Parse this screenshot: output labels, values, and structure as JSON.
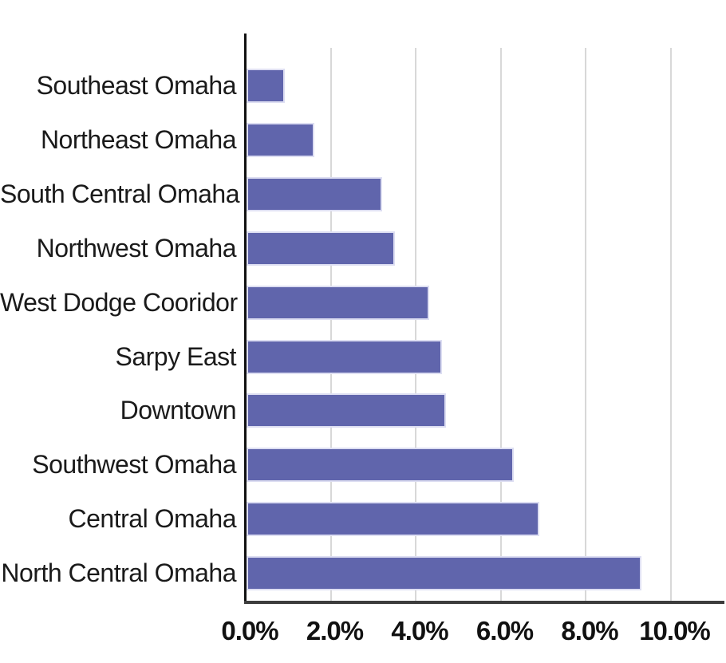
{
  "chart_data": {
    "type": "bar",
    "orientation": "horizontal",
    "title": "",
    "xlabel": "",
    "ylabel": "",
    "categories": [
      "Southeast Omaha",
      "Northeast Omaha",
      "South Central Omaha",
      "Northwest Omaha",
      "West Dodge Cooridor",
      "Sarpy East",
      "Downtown",
      "Southwest Omaha",
      "Central Omaha",
      "North Central Omaha"
    ],
    "values": [
      0.9,
      1.6,
      3.2,
      3.5,
      4.3,
      4.6,
      4.7,
      6.3,
      6.9,
      9.3
    ],
    "value_unit": "percent",
    "x_ticks": [
      0,
      2,
      4,
      6,
      8,
      10
    ],
    "x_tick_labels": [
      "0.0%",
      "2.0%",
      "4.0%",
      "6.0%",
      "8.0%",
      "10.0%"
    ],
    "xlim": [
      0,
      10.8
    ],
    "grid": "vertical-only",
    "legend": "none",
    "colors": {
      "bar_fill": "#6065AC",
      "bar_border": "#DDDEF2",
      "gridline": "#D8D8D8",
      "y_axis": "#111111",
      "x_axis": "#3D3D3D",
      "text": "#1A1A1A"
    }
  }
}
